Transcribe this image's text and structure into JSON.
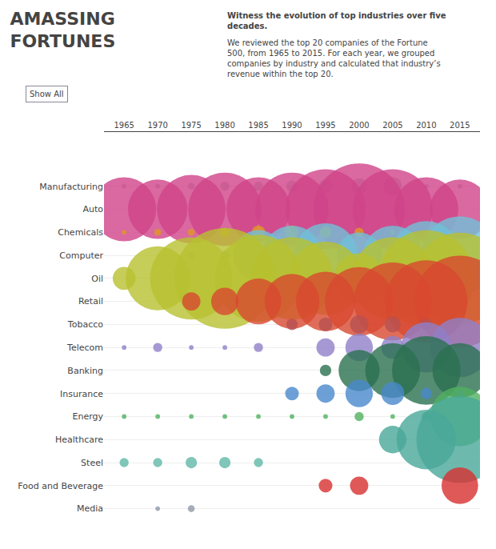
{
  "chart_data": {
    "type": "bubble",
    "title": "AMASSING\nFORTUNES",
    "subtitle": [
      "Witness the evolution of top industries over five\ndecades.",
      "We reviewed the top 20 companies of the Fortune\n500, from 1965 to 2015. For each year, we grouped\ncompanies by industry and calculated that industry’s\nrevenue within the top 20."
    ],
    "annotations": [
      "Show All"
    ],
    "categories": [
      "Manufacturing",
      "Auto",
      "Chemicals",
      "Computer",
      "Oil",
      "Retail",
      "Tobacco",
      "Telecom",
      "Banking",
      "Insurance",
      "Energy",
      "Healthcare",
      "Steel",
      "Food and Beverage",
      "Media"
    ],
    "xlim": [
      1962,
      2018
    ],
    "xticks": [
      1965,
      1970,
      1975,
      1980,
      1985,
      1990,
      1995,
      2000,
      2005,
      2010,
      2015
    ],
    "grid": true,
    "series": [
      {
        "name": "Manufacturing",
        "color": "#b0b0bc",
        "x": [
          1965,
          1970,
          1975,
          1980,
          1985,
          1990,
          1995,
          2000,
          2005,
          2010,
          2015
        ],
        "sizes": [
          2,
          2,
          3,
          4,
          4,
          5,
          6,
          7,
          8,
          2,
          2
        ]
      },
      {
        "name": "Auto",
        "color": "#d04488",
        "x": [
          1965,
          1970,
          1975,
          1980,
          1985,
          1990,
          1995,
          2000,
          2005,
          2010,
          2015
        ],
        "sizes": [
          28,
          26,
          30,
          32,
          28,
          32,
          35,
          40,
          35,
          28,
          26
        ]
      },
      {
        "name": "Chemicals",
        "color": "#e09820",
        "x": [
          1965,
          1970,
          1975,
          1980,
          1985,
          1990,
          1995,
          2000,
          2005
        ],
        "sizes": [
          2,
          3,
          3,
          4,
          6,
          6,
          5,
          4,
          2
        ]
      },
      {
        "name": "Computer",
        "color": "#70c0d8",
        "x": [
          1975,
          1980,
          1985,
          1990,
          1995,
          2000,
          2005,
          2010,
          2015
        ],
        "sizes": [
          3,
          4,
          22,
          26,
          28,
          20,
          26,
          30,
          34
        ]
      },
      {
        "name": "Oil",
        "color": "#b8c030",
        "x": [
          1965,
          1970,
          1975,
          1980,
          1985,
          1990,
          1995,
          2000,
          2005,
          2010,
          2015
        ],
        "sizes": [
          10,
          28,
          36,
          44,
          38,
          36,
          32,
          22,
          36,
          42,
          40
        ]
      },
      {
        "name": "Retail",
        "color": "#d84830",
        "x": [
          1975,
          1980,
          1985,
          1990,
          1995,
          2000,
          2005,
          2010,
          2015
        ],
        "sizes": [
          8,
          12,
          20,
          24,
          26,
          30,
          34,
          36,
          40
        ]
      },
      {
        "name": "Tobacco",
        "color": "#b85050",
        "x": [
          1990,
          1995,
          2000,
          2005,
          2010
        ],
        "sizes": [
          5,
          6,
          8,
          7,
          5
        ]
      },
      {
        "name": "Telecom",
        "color": "#9080c8",
        "x": [
          1965,
          1970,
          1975,
          1980,
          1985,
          1995,
          2000,
          2005,
          2010,
          2015
        ],
        "sizes": [
          2,
          4,
          2,
          2,
          4,
          8,
          12,
          10,
          22,
          26
        ]
      },
      {
        "name": "Banking",
        "color": "#2a7050",
        "x": [
          1995,
          2000,
          2005,
          2010,
          2015
        ],
        "sizes": [
          5,
          18,
          24,
          30,
          24
        ]
      },
      {
        "name": "Insurance",
        "color": "#4888cc",
        "x": [
          1990,
          1995,
          2000,
          2005,
          2010,
          2015
        ],
        "sizes": [
          6,
          8,
          12,
          10,
          5,
          3
        ]
      },
      {
        "name": "Energy",
        "color": "#50b060",
        "x": [
          1965,
          1970,
          1975,
          1980,
          1985,
          1990,
          1995,
          2000,
          2005,
          2010,
          2015
        ],
        "sizes": [
          2,
          2,
          2,
          2,
          2,
          2,
          2,
          4,
          2,
          4,
          26
        ]
      },
      {
        "name": "Healthcare",
        "color": "#48a898",
        "x": [
          2005,
          2010,
          2015
        ],
        "sizes": [
          12,
          26,
          38
        ]
      },
      {
        "name": "Steel",
        "color": "#60b8a8",
        "x": [
          1965,
          1970,
          1975,
          1980,
          1985
        ],
        "sizes": [
          4,
          4,
          5,
          5,
          4
        ]
      },
      {
        "name": "Food and Beverage",
        "color": "#d83030",
        "x": [
          1995,
          2000,
          2015
        ],
        "sizes": [
          6,
          8,
          16
        ]
      },
      {
        "name": "Media",
        "color": "#9098a8",
        "x": [
          1970,
          1975
        ],
        "sizes": [
          2,
          3
        ]
      }
    ]
  }
}
